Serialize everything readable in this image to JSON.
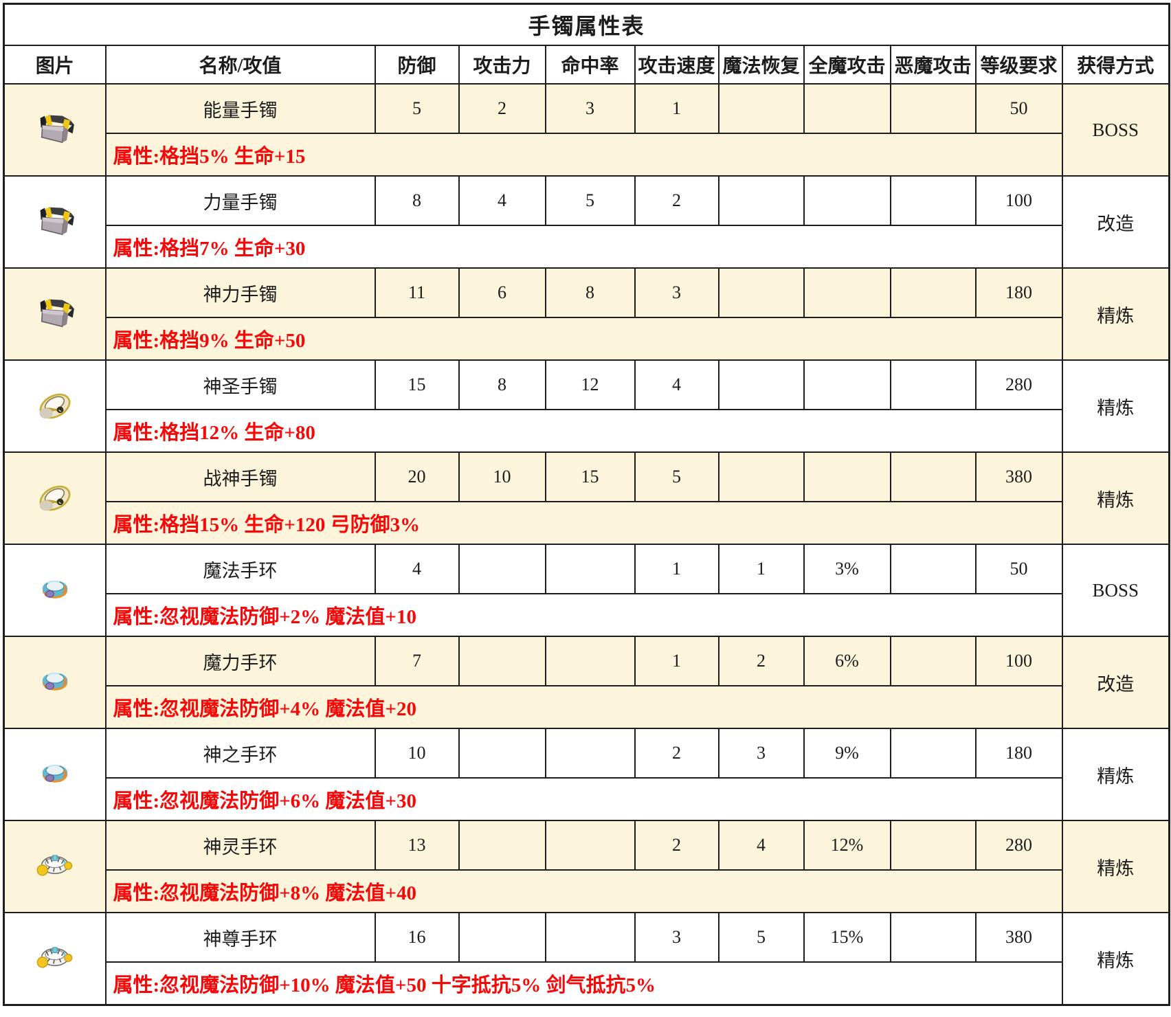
{
  "title": "手镯属性表",
  "columns": [
    "图片",
    "名称/攻值",
    "防御",
    "攻击力",
    "命中率",
    "攻击速度",
    "魔法恢复",
    "全魔攻击",
    "恶魔攻击",
    "等级要求",
    "获得方式"
  ],
  "colors": {
    "row_alt_bg": "#fcf5dc",
    "row_bg": "#ffffff",
    "attr_text_red": "#f70808",
    "border": "#1d1d1d"
  },
  "rows": [
    {
      "icon": "bracelet-icon",
      "name": "能量手镯",
      "defense": "5",
      "attack": "2",
      "hit": "3",
      "attack_speed": "1",
      "magic_recovery": "",
      "full_magic": "",
      "demon": "",
      "level": "50",
      "obtain": "BOSS",
      "attributes": "属性:格挡5% 生命+15",
      "bg": "cream"
    },
    {
      "icon": "bracelet-icon",
      "name": "力量手镯",
      "defense": "8",
      "attack": "4",
      "hit": "5",
      "attack_speed": "2",
      "magic_recovery": "",
      "full_magic": "",
      "demon": "",
      "level": "100",
      "obtain": "改造",
      "attributes": "属性:格挡7% 生命+30",
      "bg": "white"
    },
    {
      "icon": "bracelet-icon",
      "name": "神力手镯",
      "defense": "11",
      "attack": "6",
      "hit": "8",
      "attack_speed": "3",
      "magic_recovery": "",
      "full_magic": "",
      "demon": "",
      "level": "180",
      "obtain": "精炼",
      "attributes": "属性:格挡9% 生命+50",
      "bg": "cream"
    },
    {
      "icon": "gold-ring-icon",
      "name": "神圣手镯",
      "defense": "15",
      "attack": "8",
      "hit": "12",
      "attack_speed": "4",
      "magic_recovery": "",
      "full_magic": "",
      "demon": "",
      "level": "280",
      "obtain": "精炼",
      "attributes": "属性:格挡12% 生命+80",
      "bg": "white"
    },
    {
      "icon": "gold-ring-icon",
      "name": "战神手镯",
      "defense": "20",
      "attack": "10",
      "hit": "15",
      "attack_speed": "5",
      "magic_recovery": "",
      "full_magic": "",
      "demon": "",
      "level": "380",
      "obtain": "精炼",
      "attributes": "属性:格挡15% 生命+120 弓防御3%",
      "bg": "cream"
    },
    {
      "icon": "teal-ring-icon",
      "name": "魔法手环",
      "defense": "4",
      "attack": "",
      "hit": "",
      "attack_speed": "1",
      "magic_recovery": "1",
      "full_magic": "3%",
      "demon": "",
      "level": "50",
      "obtain": "BOSS",
      "attributes": "属性:忽视魔法防御+2% 魔法值+10",
      "bg": "white"
    },
    {
      "icon": "teal-ring-icon",
      "name": "魔力手环",
      "defense": "7",
      "attack": "",
      "hit": "",
      "attack_speed": "1",
      "magic_recovery": "2",
      "full_magic": "6%",
      "demon": "",
      "level": "100",
      "obtain": "改造",
      "attributes": "属性:忽视魔法防御+4% 魔法值+20",
      "bg": "cream"
    },
    {
      "icon": "teal-ring-icon",
      "name": "神之手环",
      "defense": "10",
      "attack": "",
      "hit": "",
      "attack_speed": "2",
      "magic_recovery": "3",
      "full_magic": "9%",
      "demon": "",
      "level": "180",
      "obtain": "精炼",
      "attributes": "属性:忽视魔法防御+6% 魔法值+30",
      "bg": "white"
    },
    {
      "icon": "white-band-icon",
      "name": "神灵手环",
      "defense": "13",
      "attack": "",
      "hit": "",
      "attack_speed": "2",
      "magic_recovery": "4",
      "full_magic": "12%",
      "demon": "",
      "level": "280",
      "obtain": "精炼",
      "attributes": "属性:忽视魔法防御+8% 魔法值+40",
      "bg": "cream"
    },
    {
      "icon": "white-band-icon",
      "name": "神尊手环",
      "defense": "16",
      "attack": "",
      "hit": "",
      "attack_speed": "3",
      "magic_recovery": "5",
      "full_magic": "15%",
      "demon": "",
      "level": "380",
      "obtain": "精炼",
      "attributes": "属性:忽视魔法防御+10% 魔法值+50 十字抵抗5% 剑气抵抗5%",
      "bg": "white"
    }
  ]
}
